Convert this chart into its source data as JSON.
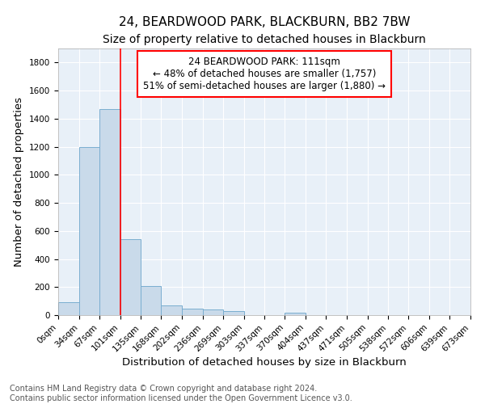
{
  "title": "24, BEARDWOOD PARK, BLACKBURN, BB2 7BW",
  "subtitle": "Size of property relative to detached houses in Blackburn",
  "xlabel": "Distribution of detached houses by size in Blackburn",
  "ylabel": "Number of detached properties",
  "bar_color": "#c9daea",
  "bar_edge_color": "#7aaed0",
  "background_color": "#e8f0f8",
  "grid_color": "white",
  "bin_edges": [
    0,
    34,
    67,
    101,
    135,
    168,
    202,
    236,
    269,
    303,
    337,
    370,
    404,
    437,
    471,
    505,
    538,
    572,
    606,
    639,
    673
  ],
  "bin_labels": [
    "0sqm",
    "34sqm",
    "67sqm",
    "101sqm",
    "135sqm",
    "168sqm",
    "202sqm",
    "236sqm",
    "269sqm",
    "303sqm",
    "337sqm",
    "370sqm",
    "404sqm",
    "437sqm",
    "471sqm",
    "505sqm",
    "538sqm",
    "572sqm",
    "606sqm",
    "639sqm",
    "673sqm"
  ],
  "bar_heights": [
    90,
    1200,
    1470,
    540,
    205,
    68,
    48,
    38,
    27,
    0,
    0,
    20,
    0,
    0,
    0,
    0,
    0,
    0,
    0,
    0
  ],
  "ylim": [
    0,
    1900
  ],
  "yticks": [
    0,
    200,
    400,
    600,
    800,
    1000,
    1200,
    1400,
    1600,
    1800
  ],
  "red_line_x": 101,
  "annotation_text_line1": "24 BEARDWOOD PARK: 111sqm",
  "annotation_text_line2": "← 48% of detached houses are smaller (1,757)",
  "annotation_text_line3": "51% of semi-detached houses are larger (1,880) →",
  "footer_line1": "Contains HM Land Registry data © Crown copyright and database right 2024.",
  "footer_line2": "Contains public sector information licensed under the Open Government Licence v3.0.",
  "annotation_box_color": "white",
  "annotation_box_edge_color": "red",
  "red_line_color": "red",
  "title_fontsize": 11,
  "subtitle_fontsize": 10,
  "axis_label_fontsize": 9.5,
  "tick_fontsize": 7.5,
  "annotation_fontsize": 8.5,
  "footer_fontsize": 7
}
